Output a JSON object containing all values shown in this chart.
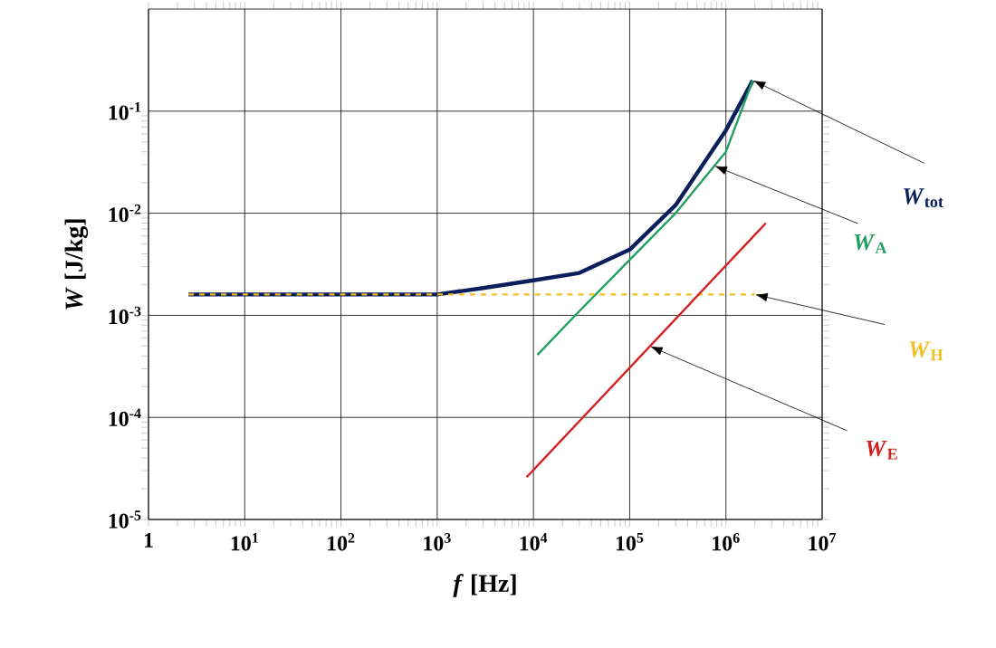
{
  "chart_data": {
    "type": "line",
    "xlabel": "*f* [Hz]",
    "ylabel": "*W* [J/kg]",
    "log": "xy",
    "grid": true,
    "xlim": [
      1,
      10000000
    ],
    "ylim": [
      1e-05,
      1
    ],
    "xticks": [
      1,
      {
        "value": 10,
        "label": "10$^{1}$"
      },
      {
        "value": 100,
        "label": "10$^{2}$"
      },
      {
        "value": 1000,
        "label": "10$^{3}$"
      },
      {
        "value": 10000,
        "label": "10$^{4}$"
      },
      {
        "value": 100000,
        "label": "10$^{5}$"
      },
      {
        "value": 1000000,
        "label": "10$^{6}$"
      },
      {
        "value": 10000000,
        "label": "10$^{7}$"
      }
    ],
    "yticks": [
      {
        "value": 1e-05,
        "label": "10$^{-5}$"
      },
      {
        "value": 0.0001,
        "label": "10$^{-4}$"
      },
      {
        "value": 0.001,
        "label": "10$^{-3}$"
      },
      {
        "value": 0.01,
        "label": "10$^{-2}$"
      },
      {
        "value": 0.1,
        "label": "10$^{-1}$"
      }
    ],
    "series": [
      {
        "name": "*W*$_{tot}$",
        "color": "#0a1f5c",
        "line_style": "solid",
        "x": [
          2.6,
          100,
          1000,
          3000,
          10000,
          30000,
          100000,
          300000,
          1000000,
          1900000
        ],
        "values": [
          0.0016,
          0.0016,
          0.0016,
          0.00185,
          0.0022,
          0.0026,
          0.0044,
          0.012,
          0.065,
          0.2
        ]
      },
      {
        "name": "*W*$_{A}$",
        "color": "#20a060",
        "line_style": "solid",
        "x": [
          11000,
          30000,
          100000,
          300000,
          1000000,
          1900000
        ],
        "values": [
          0.00041,
          0.0011,
          0.0035,
          0.01,
          0.04,
          0.2
        ]
      },
      {
        "name": "*W*$_{H}$",
        "color": "#f0c020",
        "line_style": "dashed",
        "x": [
          2.6,
          2000000
        ],
        "values": [
          0.0016,
          0.0016
        ]
      },
      {
        "name": "*W*$_{E}$",
        "color": "#d42020",
        "line_style": "solid",
        "x": [
          8500,
          2600000
        ],
        "values": [
          2.6e-05,
          0.008
        ]
      }
    ]
  }
}
